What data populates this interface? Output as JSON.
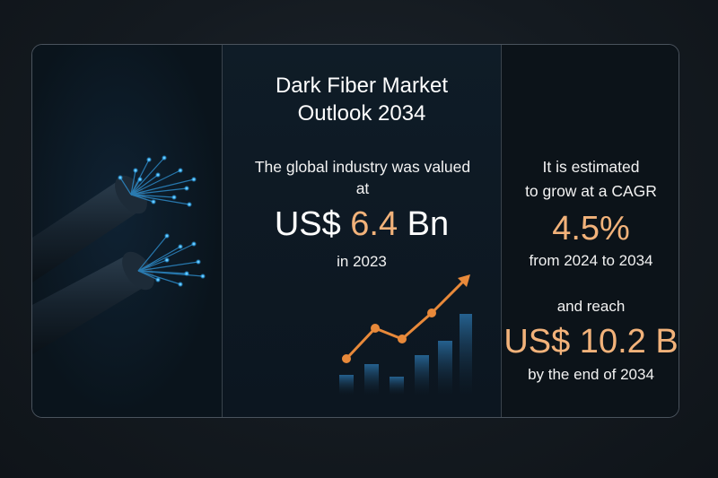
{
  "title": {
    "line1": "Dark Fiber Market",
    "line2": "Outlook 2034"
  },
  "current": {
    "label_line1": "The global industry was valued",
    "label_line2": "at",
    "prefix": "US$ ",
    "value": "6.4",
    "suffix": " Bn",
    "year": "in 2023"
  },
  "forecast": {
    "line1": "It is estimated",
    "line2": "to grow at a CAGR",
    "cagr": "4.5%",
    "period": "from 2024 to 2034",
    "reach_label": "and reach",
    "value": "US$ 10.2 B",
    "end": "by the end of 2034"
  },
  "colors": {
    "accent": "#f2b27a",
    "arrow": "#e8893a",
    "fiber_glow": "#39b6ff",
    "bars": "#1c4a6e"
  },
  "illustration": {
    "left": "fiber-optic-cable-icon",
    "middle": "growth-chart-icon"
  }
}
